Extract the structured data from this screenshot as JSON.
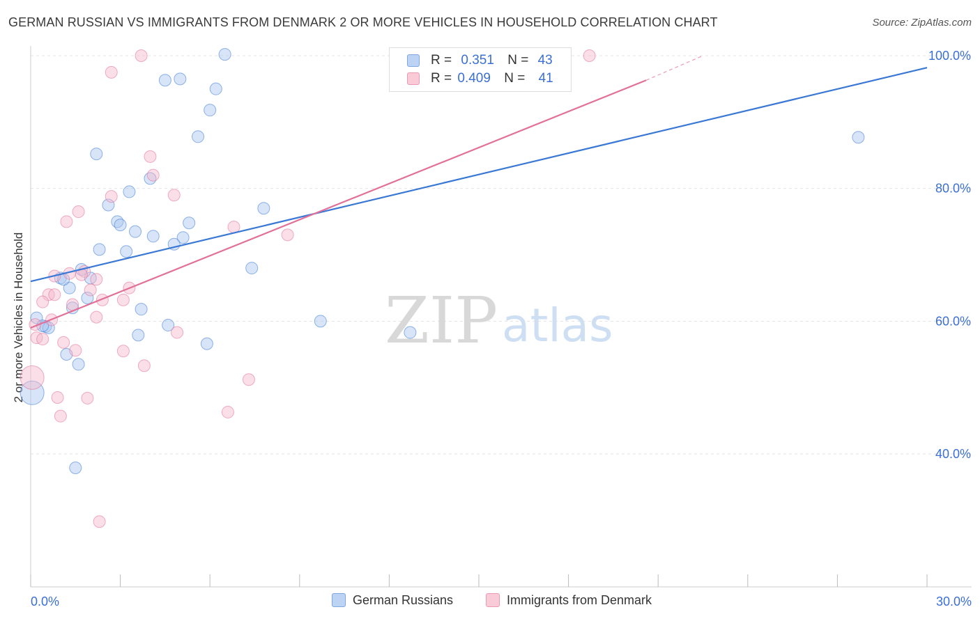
{
  "title": "GERMAN RUSSIAN VS IMMIGRANTS FROM DENMARK 2 OR MORE VEHICLES IN HOUSEHOLD CORRELATION CHART",
  "source": "Source: ZipAtlas.com",
  "watermark": {
    "zip": "ZIP",
    "atlas": "atlas"
  },
  "legend": {
    "rows": [
      {
        "r_label": "R =",
        "r_value": "0.351",
        "n_label": "N =",
        "n_value": "43",
        "color": "#a9c6ef"
      },
      {
        "r_label": "R =",
        "r_value": "0.409",
        "n_label": "N =",
        "n_value": "41",
        "color": "#f5b8cb"
      }
    ]
  },
  "bottom_legend": {
    "series1": "German Russians",
    "series2": "Immigrants from Denmark"
  },
  "chart_data": {
    "type": "scatter",
    "title": "GERMAN RUSSIAN VS IMMIGRANTS FROM DENMARK 2 OR MORE VEHICLES IN HOUSEHOLD CORRELATION CHART",
    "xlabel": "",
    "ylabel": "2 or more Vehicles in Household",
    "xlim": [
      0,
      30
    ],
    "ylim": [
      20,
      102
    ],
    "x_tick_labels": [
      "0.0%",
      "30.0%"
    ],
    "y_ticks": [
      40,
      60,
      80,
      100
    ],
    "y_tick_labels": [
      "40.0%",
      "60.0%",
      "80.0%",
      "100.0%"
    ],
    "grid": true,
    "series": [
      {
        "name": "German Russians",
        "color": "#3a78d6",
        "fill": "#a9c6ef",
        "R": 0.351,
        "N": 43,
        "trend": {
          "x0": 0,
          "y0": 66.0,
          "x1": 30,
          "y1": 98.2
        },
        "points": [
          {
            "x": 6.5,
            "y": 100.2,
            "s": 1
          },
          {
            "x": 4.5,
            "y": 96.3,
            "s": 1
          },
          {
            "x": 5.0,
            "y": 96.5,
            "s": 1
          },
          {
            "x": 6.2,
            "y": 95.0,
            "s": 1
          },
          {
            "x": 6.0,
            "y": 91.8,
            "s": 1
          },
          {
            "x": 5.6,
            "y": 87.8,
            "s": 1
          },
          {
            "x": 2.2,
            "y": 85.2,
            "s": 1
          },
          {
            "x": 4.0,
            "y": 81.5,
            "s": 1
          },
          {
            "x": 3.3,
            "y": 79.5,
            "s": 1
          },
          {
            "x": 2.6,
            "y": 77.5,
            "s": 1
          },
          {
            "x": 7.8,
            "y": 77.0,
            "s": 1
          },
          {
            "x": 2.9,
            "y": 75.0,
            "s": 1
          },
          {
            "x": 3.0,
            "y": 74.5,
            "s": 1
          },
          {
            "x": 5.3,
            "y": 74.8,
            "s": 1
          },
          {
            "x": 3.5,
            "y": 73.5,
            "s": 1
          },
          {
            "x": 4.1,
            "y": 72.8,
            "s": 1
          },
          {
            "x": 5.1,
            "y": 72.6,
            "s": 1
          },
          {
            "x": 4.8,
            "y": 71.6,
            "s": 1
          },
          {
            "x": 2.3,
            "y": 70.8,
            "s": 1
          },
          {
            "x": 3.2,
            "y": 70.5,
            "s": 1
          },
          {
            "x": 7.4,
            "y": 68.0,
            "s": 1
          },
          {
            "x": 1.7,
            "y": 67.8,
            "s": 1
          },
          {
            "x": 1.0,
            "y": 66.5,
            "s": 1
          },
          {
            "x": 2.0,
            "y": 66.5,
            "s": 1
          },
          {
            "x": 1.3,
            "y": 65.0,
            "s": 1
          },
          {
            "x": 1.9,
            "y": 63.5,
            "s": 1
          },
          {
            "x": 1.4,
            "y": 62.0,
            "s": 1
          },
          {
            "x": 3.7,
            "y": 61.8,
            "s": 1
          },
          {
            "x": 0.2,
            "y": 60.5,
            "s": 1
          },
          {
            "x": 9.7,
            "y": 60.0,
            "s": 1
          },
          {
            "x": 0.5,
            "y": 59.2,
            "s": 1
          },
          {
            "x": 0.6,
            "y": 59.0,
            "s": 1
          },
          {
            "x": 0.4,
            "y": 59.3,
            "s": 1
          },
          {
            "x": 4.6,
            "y": 59.4,
            "s": 1
          },
          {
            "x": 12.7,
            "y": 58.3,
            "s": 1
          },
          {
            "x": 3.6,
            "y": 57.9,
            "s": 1
          },
          {
            "x": 5.9,
            "y": 56.6,
            "s": 1
          },
          {
            "x": 1.2,
            "y": 55.0,
            "s": 1
          },
          {
            "x": 1.6,
            "y": 53.5,
            "s": 1
          },
          {
            "x": 0.05,
            "y": 49.2,
            "s": 2
          },
          {
            "x": 1.5,
            "y": 37.9,
            "s": 1
          },
          {
            "x": 27.7,
            "y": 87.7,
            "s": 1
          },
          {
            "x": 1.1,
            "y": 66.3,
            "s": 1
          }
        ]
      },
      {
        "name": "Immigrants from Denmark",
        "color": "#e27097",
        "fill": "#f5b8cb",
        "R": 0.409,
        "N": 41,
        "trend": {
          "x0": 0,
          "y0": 59.0,
          "x1": 20.6,
          "y1": 96.3
        },
        "trend_ext": {
          "x0": 20.6,
          "y0": 96.3,
          "x1": 22.5,
          "y1": 100.0
        },
        "points": [
          {
            "x": 3.7,
            "y": 100.0,
            "s": 1
          },
          {
            "x": 18.7,
            "y": 100.0,
            "s": 1
          },
          {
            "x": 2.7,
            "y": 97.5,
            "s": 1
          },
          {
            "x": 4.0,
            "y": 84.8,
            "s": 1
          },
          {
            "x": 4.1,
            "y": 82.0,
            "s": 1
          },
          {
            "x": 2.7,
            "y": 78.8,
            "s": 1
          },
          {
            "x": 4.8,
            "y": 79.0,
            "s": 1
          },
          {
            "x": 1.6,
            "y": 76.5,
            "s": 1
          },
          {
            "x": 1.2,
            "y": 75.0,
            "s": 1
          },
          {
            "x": 6.8,
            "y": 74.2,
            "s": 1
          },
          {
            "x": 8.6,
            "y": 73.0,
            "s": 1
          },
          {
            "x": 1.8,
            "y": 67.5,
            "s": 1
          },
          {
            "x": 1.3,
            "y": 67.2,
            "s": 1
          },
          {
            "x": 0.8,
            "y": 66.8,
            "s": 1
          },
          {
            "x": 1.7,
            "y": 67.0,
            "s": 1
          },
          {
            "x": 2.2,
            "y": 66.3,
            "s": 1
          },
          {
            "x": 3.3,
            "y": 65.0,
            "s": 1
          },
          {
            "x": 2.0,
            "y": 64.7,
            "s": 1
          },
          {
            "x": 0.6,
            "y": 64.0,
            "s": 1
          },
          {
            "x": 0.8,
            "y": 64.0,
            "s": 1
          },
          {
            "x": 2.4,
            "y": 63.2,
            "s": 1
          },
          {
            "x": 3.1,
            "y": 63.2,
            "s": 1
          },
          {
            "x": 0.4,
            "y": 62.9,
            "s": 1
          },
          {
            "x": 1.4,
            "y": 62.5,
            "s": 1
          },
          {
            "x": 2.2,
            "y": 60.6,
            "s": 1
          },
          {
            "x": 0.7,
            "y": 60.2,
            "s": 1
          },
          {
            "x": 0.15,
            "y": 59.5,
            "s": 1
          },
          {
            "x": 4.9,
            "y": 58.3,
            "s": 1
          },
          {
            "x": 0.2,
            "y": 57.5,
            "s": 1
          },
          {
            "x": 0.4,
            "y": 57.3,
            "s": 1
          },
          {
            "x": 1.1,
            "y": 56.8,
            "s": 1
          },
          {
            "x": 1.5,
            "y": 55.6,
            "s": 1
          },
          {
            "x": 3.1,
            "y": 55.5,
            "s": 1
          },
          {
            "x": 3.8,
            "y": 53.3,
            "s": 1
          },
          {
            "x": 0.05,
            "y": 51.5,
            "s": 2
          },
          {
            "x": 7.3,
            "y": 51.2,
            "s": 1
          },
          {
            "x": 0.9,
            "y": 48.5,
            "s": 1
          },
          {
            "x": 1.9,
            "y": 48.4,
            "s": 1
          },
          {
            "x": 1.0,
            "y": 45.7,
            "s": 1
          },
          {
            "x": 6.6,
            "y": 46.3,
            "s": 1
          },
          {
            "x": 2.3,
            "y": 29.8,
            "s": 1
          }
        ]
      }
    ]
  }
}
